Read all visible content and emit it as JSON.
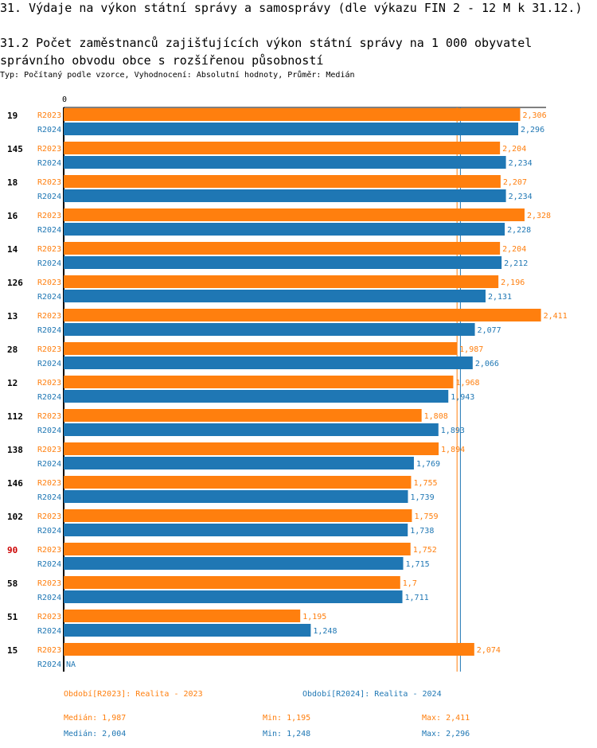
{
  "header": {
    "title": "31. Výdaje na výkon státní správy a samosprávy (dle výkazu FIN 2 - 12 M k 31.12.)",
    "subtitle": "31.2 Počet zaměstnanců zajišťujících výkon státní správy na 1 000 obyvatel správního obvodu obce s rozšířenou působností",
    "info": "Typ: Počítaný podle vzorce, Vyhodnocení: Absolutní hodnoty, Průměr: Medián"
  },
  "colors": {
    "r2023": "#ff7f0e",
    "r2024": "#1f77b4",
    "highlight": "#cc0000",
    "axis": "#000000"
  },
  "chart_data": {
    "type": "bar",
    "orientation": "horizontal",
    "axis_zero_label": "0",
    "xlim": [
      0,
      2.7
    ],
    "categories": [
      "19",
      "145",
      "18",
      "16",
      "14",
      "126",
      "13",
      "28",
      "12",
      "112",
      "138",
      "146",
      "102",
      "90",
      "58",
      "51",
      "15"
    ],
    "highlight_category": "90",
    "series": [
      {
        "name": "R2023",
        "label": "R2023",
        "values": [
          2.306,
          2.204,
          2.207,
          2.328,
          2.204,
          2.196,
          2.411,
          1.987,
          1.968,
          1.808,
          1.894,
          1.755,
          1.759,
          1.752,
          1.7,
          1.195,
          2.074
        ],
        "labels": [
          "2,306",
          "2,204",
          "2,207",
          "2,328",
          "2,204",
          "2,196",
          "2,411",
          "1,987",
          "1,968",
          "1,808",
          "1,894",
          "1,755",
          "1,759",
          "1,752",
          "1,7",
          "1,195",
          "2,074"
        ]
      },
      {
        "name": "R2024",
        "label": "R2024",
        "values": [
          2.296,
          2.234,
          2.234,
          2.228,
          2.212,
          2.131,
          2.077,
          2.066,
          1.943,
          1.893,
          1.769,
          1.739,
          1.738,
          1.715,
          1.711,
          1.248,
          null
        ],
        "labels": [
          "2,296",
          "2,234",
          "2,234",
          "2,228",
          "2,212",
          "2,131",
          "2,077",
          "2,066",
          "1,943",
          "1,893",
          "1,769",
          "1,739",
          "1,738",
          "1,715",
          "1,711",
          "1,248",
          "NA"
        ]
      }
    ],
    "median_lines": [
      1.987,
      2.004
    ]
  },
  "legend": {
    "r2023": "Období[R2023]: Realita - 2023",
    "r2024": "Období[R2024]: Realita - 2024"
  },
  "stats": {
    "r2023": {
      "median": "Medián: 1,987",
      "min": "Min: 1,195",
      "max": "Max: 2,411"
    },
    "r2024": {
      "median": "Medián: 2,004",
      "min": "Min: 1,248",
      "max": "Max: 2,296"
    }
  }
}
